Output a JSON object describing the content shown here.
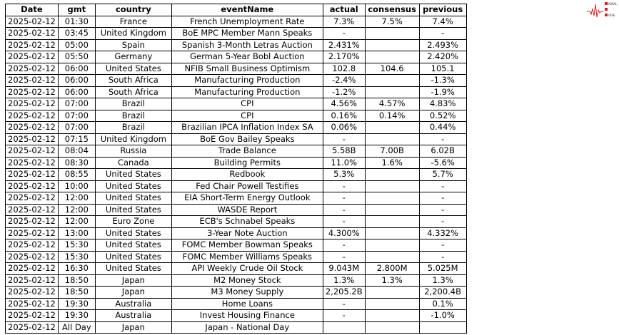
{
  "logo": {
    "text": "Signal 2 Noise",
    "color": "#d0202a"
  },
  "table": {
    "headers": [
      "Date",
      "gmt",
      "country",
      "eventName",
      "actual",
      "consensus",
      "previous"
    ],
    "rows": [
      [
        "2025-02-12",
        "01:30",
        "France",
        "French Unemployment Rate",
        "7.3%",
        "7.5%",
        "7.4%"
      ],
      [
        "2025-02-12",
        "03:45",
        "United Kingdom",
        "BoE MPC Member Mann Speaks",
        "-",
        "",
        "-"
      ],
      [
        "2025-02-12",
        "05:00",
        "Spain",
        "Spanish 3-Month Letras Auction",
        "2.431%",
        "",
        "2.493%"
      ],
      [
        "2025-02-12",
        "05:50",
        "Germany",
        "German 5-Year Bobl Auction",
        "2.170%",
        "",
        "2.420%"
      ],
      [
        "2025-02-12",
        "06:00",
        "United States",
        "NFIB Small Business Optimism",
        "102.8",
        "104.6",
        "105.1"
      ],
      [
        "2025-02-12",
        "06:00",
        "South Africa",
        "Manufacturing Production",
        "-2.4%",
        "",
        "-1.3%"
      ],
      [
        "2025-02-12",
        "06:00",
        "South Africa",
        "Manufacturing Production",
        "-1.2%",
        "",
        "-1.9%"
      ],
      [
        "2025-02-12",
        "07:00",
        "Brazil",
        "CPI",
        "4.56%",
        "4.57%",
        "4.83%"
      ],
      [
        "2025-02-12",
        "07:00",
        "Brazil",
        "CPI",
        "0.16%",
        "0.14%",
        "0.52%"
      ],
      [
        "2025-02-12",
        "07:00",
        "Brazil",
        "Brazilian IPCA Inflation Index SA",
        "0.06%",
        "",
        "0.44%"
      ],
      [
        "2025-02-12",
        "07:15",
        "United Kingdom",
        "BoE Gov Bailey Speaks",
        "-",
        "",
        "-"
      ],
      [
        "2025-02-12",
        "08:04",
        "Russia",
        "Trade Balance",
        "5.58B",
        "7.00B",
        "6.02B"
      ],
      [
        "2025-02-12",
        "08:30",
        "Canada",
        "Building Permits",
        "11.0%",
        "1.6%",
        "-5.6%"
      ],
      [
        "2025-02-12",
        "08:55",
        "United States",
        "Redbook",
        "5.3%",
        "",
        "5.7%"
      ],
      [
        "2025-02-12",
        "10:00",
        "United States",
        "Fed Chair Powell Testifies",
        "-",
        "",
        "-"
      ],
      [
        "2025-02-12",
        "12:00",
        "United States",
        "EIA Short-Term Energy Outlook",
        "-",
        "",
        "-"
      ],
      [
        "2025-02-12",
        "12:00",
        "United States",
        "WASDE Report",
        "-",
        "",
        "-"
      ],
      [
        "2025-02-12",
        "12:00",
        "Euro Zone",
        "ECB's Schnabel Speaks",
        "-",
        "",
        "-"
      ],
      [
        "2025-02-12",
        "13:00",
        "United States",
        "3-Year Note Auction",
        "4.300%",
        "",
        "4.332%"
      ],
      [
        "2025-02-12",
        "15:30",
        "United States",
        "FOMC Member Bowman Speaks",
        "-",
        "",
        "-"
      ],
      [
        "2025-02-12",
        "15:30",
        "United States",
        "FOMC Member Williams Speaks",
        "-",
        "",
        "-"
      ],
      [
        "2025-02-12",
        "16:30",
        "United States",
        "API Weekly Crude Oil Stock",
        "9.043M",
        "2.800M",
        "5.025M"
      ],
      [
        "2025-02-12",
        "18:50",
        "Japan",
        "M2 Money Stock",
        "1.3%",
        "1.3%",
        "1.3%"
      ],
      [
        "2025-02-12",
        "18:50",
        "Japan",
        "M3 Money Supply",
        "2,205.2B",
        "",
        "2,200.4B"
      ],
      [
        "2025-02-12",
        "19:30",
        "Australia",
        "Home Loans",
        "-",
        "",
        "0.1%"
      ],
      [
        "2025-02-12",
        "19:30",
        "Australia",
        "Invest Housing Finance",
        "-",
        "",
        "-1.0%"
      ],
      [
        "2025-02-12",
        "All Day",
        "Japan",
        "Japan - National Day",
        "",
        "",
        ""
      ]
    ]
  }
}
